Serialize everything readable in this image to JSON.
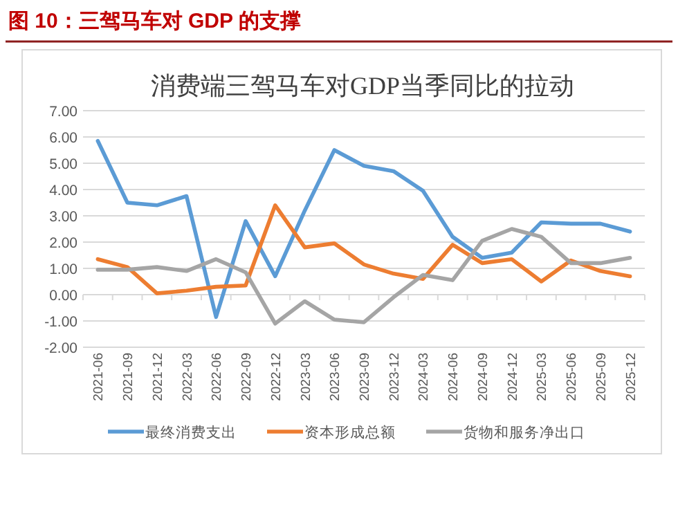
{
  "chart_data": {
    "type": "line",
    "title": "图 10：三驾马车对 GDP 的支撑",
    "subtitle": "消费端三驾马车对GDP当季同比的拉动",
    "categories": [
      "2021-06",
      "2021-09",
      "2021-12",
      "2022-03",
      "2022-06",
      "2022-09",
      "2022-12",
      "2023-03",
      "2023-06",
      "2023-09",
      "2023-12",
      "2024-03",
      "2024-06",
      "2024-09",
      "2024-12",
      "2025-03",
      "2025-06",
      "2025-09",
      "2025-12"
    ],
    "series": [
      {
        "name": "最终消费支出",
        "color": "#5b9bd5",
        "values": [
          5.85,
          3.5,
          3.4,
          3.75,
          -0.85,
          2.8,
          0.7,
          3.2,
          5.5,
          4.9,
          4.7,
          3.95,
          2.2,
          1.4,
          1.6,
          2.75,
          2.7,
          2.7,
          2.4
        ]
      },
      {
        "name": "资本形成总额",
        "color": "#ed7d31",
        "values": [
          1.35,
          1.05,
          0.05,
          0.15,
          0.3,
          0.35,
          3.4,
          1.8,
          1.95,
          1.15,
          0.8,
          0.6,
          1.9,
          1.2,
          1.35,
          0.5,
          1.3,
          0.9,
          0.7
        ]
      },
      {
        "name": "货物和服务净出口",
        "color": "#a5a5a5",
        "values": [
          0.95,
          0.95,
          1.05,
          0.9,
          1.35,
          0.85,
          -1.1,
          -0.25,
          -0.95,
          -1.05,
          -0.1,
          0.75,
          0.55,
          2.05,
          2.5,
          2.2,
          1.2,
          1.2,
          1.4
        ]
      }
    ],
    "ylim": [
      -2,
      7
    ],
    "yticks": [
      {
        "value": -2,
        "label": "-2.00"
      },
      {
        "value": -1,
        "label": "-1.00"
      },
      {
        "value": 0,
        "label": "0.00"
      },
      {
        "value": 1,
        "label": "1.00"
      },
      {
        "value": 2,
        "label": "2.00"
      },
      {
        "value": 3,
        "label": "3.00"
      },
      {
        "value": 4,
        "label": "4.00"
      },
      {
        "value": 5,
        "label": "5.00"
      },
      {
        "value": 6,
        "label": "6.00"
      },
      {
        "value": 7,
        "label": "7.00"
      }
    ],
    "grid": "y",
    "legend": "bottom",
    "marker": "none",
    "line_style": "solid"
  }
}
